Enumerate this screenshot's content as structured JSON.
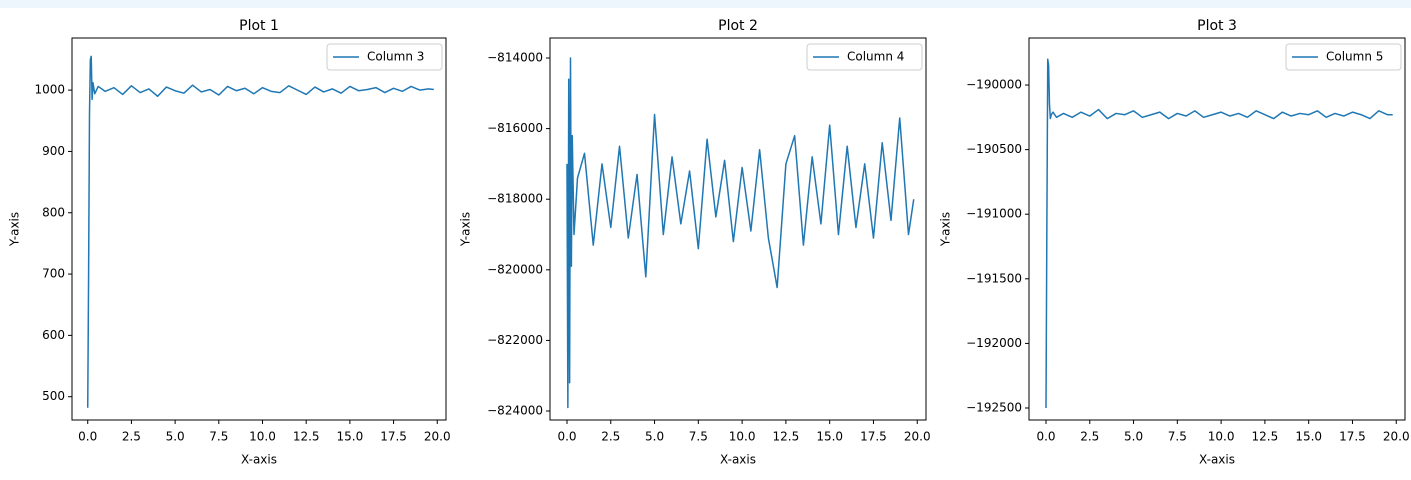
{
  "chart_data": [
    {
      "type": "line",
      "title": "Plot 1",
      "x_label": "X-axis",
      "y_label": "Y-axis",
      "legend": "upper right",
      "x": [
        0,
        0.05,
        0.1,
        0.15,
        0.2,
        0.25,
        0.3,
        0.4,
        0.6,
        1,
        1.5,
        2,
        2.5,
        3,
        3.5,
        4,
        4.5,
        5,
        5.5,
        6,
        6.5,
        7,
        7.5,
        8,
        8.5,
        9,
        9.5,
        10,
        10.5,
        11,
        11.5,
        12,
        12.5,
        13,
        13.5,
        14,
        14.5,
        15,
        15.5,
        16,
        16.5,
        17,
        17.5,
        18,
        18.5,
        19,
        19.5,
        19.8
      ],
      "series": [
        {
          "name": "Column 3",
          "color": "#1f77b4",
          "values": [
            482,
            700,
            960,
            1050,
            1055,
            985,
            1012,
            994,
            1006,
            998,
            1004,
            993,
            1007,
            996,
            1002,
            990,
            1005,
            999,
            995,
            1008,
            997,
            1001,
            992,
            1006,
            999,
            1003,
            994,
            1004,
            998,
            996,
            1007,
            1000,
            993,
            1005,
            997,
            1002,
            995,
            1006,
            999,
            1001,
            1004,
            996,
            1003,
            998,
            1006,
            1000,
            1002,
            1001
          ]
        }
      ],
      "xlim": [
        -0.9,
        20.5
      ],
      "ylim": [
        462,
        1085
      ],
      "xticks": [
        {
          "value": 0,
          "label": "0.0"
        },
        2.5,
        {
          "value": 5,
          "label": "5.0"
        },
        7.5,
        {
          "value": 10,
          "label": "10.0"
        },
        12.5,
        {
          "value": 15,
          "label": "15.0"
        },
        17.5,
        {
          "value": 20,
          "label": "20.0"
        }
      ],
      "yticks": [
        500,
        600,
        700,
        800,
        900,
        1000
      ]
    },
    {
      "type": "line",
      "title": "Plot 2",
      "x_label": "X-axis",
      "y_label": "Y-axis",
      "legend": "upper right",
      "x": [
        0,
        0.05,
        0.1,
        0.15,
        0.2,
        0.25,
        0.3,
        0.4,
        0.6,
        1,
        1.5,
        2,
        2.5,
        3,
        3.5,
        4,
        4.5,
        5,
        5.5,
        6,
        6.5,
        7,
        7.5,
        8,
        8.5,
        9,
        9.5,
        10,
        10.5,
        11,
        11.5,
        12,
        12.5,
        13,
        13.5,
        14,
        14.5,
        15,
        15.5,
        16,
        16.5,
        17,
        17.5,
        18,
        18.5,
        19,
        19.5,
        19.8
      ],
      "series": [
        {
          "name": "Column 4",
          "color": "#1f77b4",
          "values": [
            -817000,
            -823900,
            -814600,
            -823200,
            -814000,
            -819900,
            -816200,
            -819000,
            -817400,
            -816700,
            -819300,
            -817000,
            -818800,
            -816500,
            -819100,
            -817300,
            -820200,
            -815600,
            -819000,
            -816800,
            -818700,
            -817200,
            -819400,
            -816300,
            -818500,
            -816900,
            -819200,
            -817100,
            -818900,
            -816600,
            -819100,
            -820500,
            -817000,
            -816200,
            -819300,
            -816800,
            -818700,
            -815900,
            -819000,
            -816500,
            -818800,
            -817000,
            -819100,
            -816400,
            -818600,
            -815700,
            -819000,
            -818000
          ]
        }
      ],
      "xlim": [
        -0.97,
        20.5
      ],
      "ylim": [
        -824255,
        -813433
      ],
      "xticks": [
        {
          "value": 0,
          "label": "0.0"
        },
        2.5,
        {
          "value": 5,
          "label": "5.0"
        },
        7.5,
        {
          "value": 10,
          "label": "10.0"
        },
        12.5,
        {
          "value": 15,
          "label": "15.0"
        },
        17.5,
        {
          "value": 20,
          "label": "20.0"
        }
      ],
      "yticks": [
        {
          "value": -824000,
          "label": "−824000"
        },
        {
          "value": -822000,
          "label": "−822000"
        },
        {
          "value": -820000,
          "label": "−820000"
        },
        {
          "value": -818000,
          "label": "−818000"
        },
        {
          "value": -816000,
          "label": "−816000"
        },
        {
          "value": -814000,
          "label": "−814000"
        }
      ]
    },
    {
      "type": "line",
      "title": "Plot 3",
      "x_label": "X-axis",
      "y_label": "Y-axis",
      "legend": "upper right",
      "x": [
        0,
        0.05,
        0.1,
        0.15,
        0.2,
        0.25,
        0.3,
        0.4,
        0.6,
        1,
        1.5,
        2,
        2.5,
        3,
        3.5,
        4,
        4.5,
        5,
        5.5,
        6,
        6.5,
        7,
        7.5,
        8,
        8.5,
        9,
        9.5,
        10,
        10.5,
        11,
        11.5,
        12,
        12.5,
        13,
        13.5,
        14,
        14.5,
        15,
        15.5,
        16,
        16.5,
        17,
        17.5,
        18,
        18.5,
        19,
        19.5,
        19.8
      ],
      "series": [
        {
          "name": "Column 5",
          "color": "#1f77b4",
          "values": [
            -192500,
            -191100,
            -189800,
            -189850,
            -190150,
            -190260,
            -190230,
            -190210,
            -190250,
            -190220,
            -190250,
            -190210,
            -190240,
            -190190,
            -190260,
            -190220,
            -190230,
            -190200,
            -190250,
            -190230,
            -190210,
            -190260,
            -190220,
            -190240,
            -190200,
            -190250,
            -190230,
            -190210,
            -190240,
            -190220,
            -190250,
            -190200,
            -190230,
            -190260,
            -190210,
            -190240,
            -190220,
            -190230,
            -190200,
            -190250,
            -190220,
            -190240,
            -190210,
            -190230,
            -190260,
            -190200,
            -190230,
            -190230
          ]
        }
      ],
      "xlim": [
        -0.97,
        20.5
      ],
      "ylim": [
        -192593,
        -189636
      ],
      "xticks": [
        {
          "value": 0,
          "label": "0.0"
        },
        2.5,
        {
          "value": 5,
          "label": "5.0"
        },
        7.5,
        {
          "value": 10,
          "label": "10.0"
        },
        12.5,
        {
          "value": 15,
          "label": "15.0"
        },
        17.5,
        {
          "value": 20,
          "label": "20.0"
        }
      ],
      "yticks": [
        {
          "value": -192500,
          "label": "−192500"
        },
        {
          "value": -192000,
          "label": "−192000"
        },
        {
          "value": -191500,
          "label": "−191500"
        },
        {
          "value": -191000,
          "label": "−191000"
        },
        {
          "value": -190500,
          "label": "−190500"
        },
        {
          "value": -190000,
          "label": "−190000"
        }
      ]
    }
  ]
}
